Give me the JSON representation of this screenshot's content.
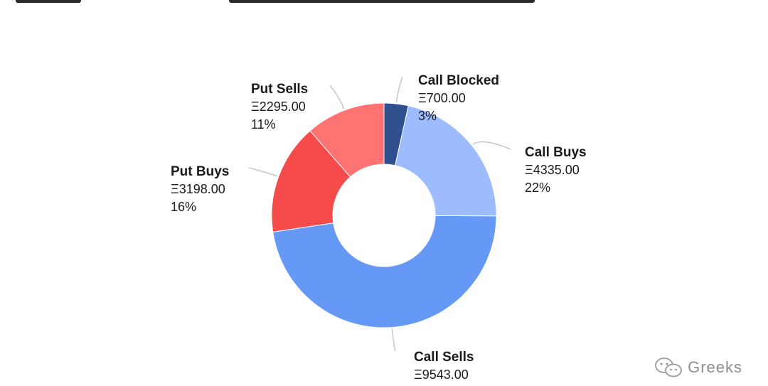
{
  "chart_data": {
    "type": "pie",
    "donut": true,
    "currency_symbol": "Ξ",
    "slices": [
      {
        "name": "Call Blocked",
        "value": 700.0,
        "value_label": "Ξ700.00",
        "percent_label": "3%",
        "color": "#2f4f8f"
      },
      {
        "name": "Call Buys",
        "value": 4335.0,
        "value_label": "Ξ4335.00",
        "percent_label": "22%",
        "color": "#9dbcff"
      },
      {
        "name": "Call Sells",
        "value": 9543.0,
        "value_label": "Ξ9543.00",
        "percent_label": "",
        "color": "#6699f5"
      },
      {
        "name": "Put Buys",
        "value": 3198.0,
        "value_label": "Ξ3198.00",
        "percent_label": "16%",
        "color": "#f54b4b"
      },
      {
        "name": "Put Sells",
        "value": 2295.0,
        "value_label": "Ξ2295.00",
        "percent_label": "11%",
        "color": "#ff7373"
      }
    ],
    "legend": "none"
  },
  "watermark": {
    "text": "Greeks",
    "icon": "wechat-icon"
  }
}
